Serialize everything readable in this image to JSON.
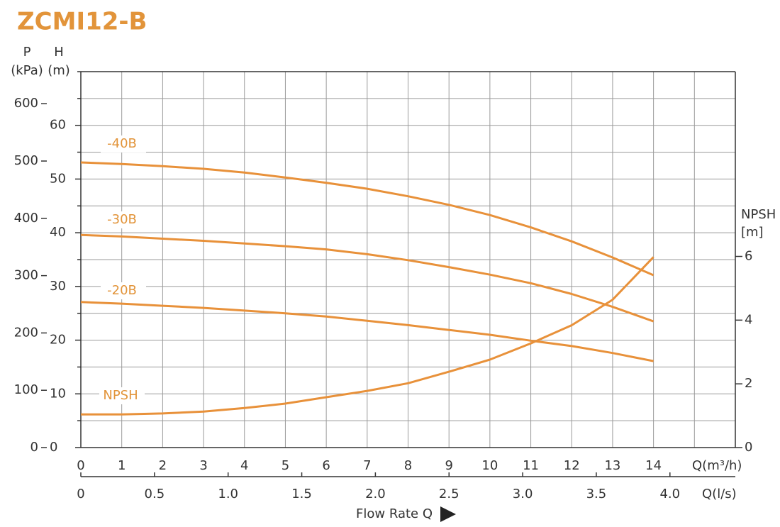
{
  "chart_data": {
    "type": "line",
    "title": "ZCMI12-B",
    "x_label": "Q(m³/h)",
    "x2_label": "Q(l/s)",
    "x_title": "Flow Rate Q",
    "y_label": "H",
    "y_unit": "(m)",
    "p_label": "P",
    "p_unit": "(kPa)",
    "y2_label": "NPSH",
    "y2_unit": "[m]",
    "x": [
      0,
      1,
      2,
      3,
      4,
      5,
      6,
      7,
      8,
      9,
      10,
      11,
      12,
      13,
      14
    ],
    "xlim": [
      0,
      16
    ],
    "xticks": [
      0,
      1,
      2,
      3,
      4,
      5,
      6,
      7,
      8,
      9,
      10,
      11,
      12,
      13,
      14
    ],
    "xgrid": [
      15,
      16
    ],
    "x2lim": [
      0,
      4.444
    ],
    "x2ticks": [
      0,
      0.5,
      {
        "value": 1,
        "label": "1.0"
      },
      1.5,
      {
        "value": 2,
        "label": "2.0"
      },
      2.5,
      {
        "value": 3,
        "label": "3.0"
      },
      3.5,
      {
        "value": 4,
        "label": "4.0"
      }
    ],
    "ylim": [
      0,
      70
    ],
    "yticks": [
      0,
      10,
      20,
      30,
      40,
      50,
      60
    ],
    "ygrid": [
      5,
      15,
      25,
      35,
      45,
      55,
      65,
      70
    ],
    "plim": [
      0,
      656
    ],
    "pticks": [
      0,
      100,
      200,
      300,
      400,
      500,
      600
    ],
    "y2lim": [
      0,
      11.8
    ],
    "y2ticks": [
      0,
      2,
      4,
      6
    ],
    "grid": true,
    "series": [
      {
        "name": "-40B",
        "color": "#e8913a",
        "axis": "y",
        "values": [
          53.1,
          52.8,
          52.4,
          51.9,
          51.2,
          50.3,
          49.3,
          48.2,
          46.8,
          45.2,
          43.3,
          41.0,
          38.4,
          35.4,
          32.1
        ]
      },
      {
        "name": "-30B",
        "color": "#e8913a",
        "axis": "y",
        "values": [
          39.6,
          39.3,
          38.9,
          38.5,
          38.0,
          37.5,
          36.9,
          36.0,
          34.9,
          33.6,
          32.2,
          30.6,
          28.6,
          26.2,
          23.5
        ]
      },
      {
        "name": "-20B",
        "color": "#e8913a",
        "axis": "y",
        "values": [
          27.1,
          26.8,
          26.4,
          26.0,
          25.5,
          25.0,
          24.4,
          23.6,
          22.8,
          21.9,
          21.0,
          19.9,
          18.9,
          17.6,
          16.1
        ]
      },
      {
        "name": "NPSH",
        "color": "#e8913a",
        "axis": "y2",
        "values": [
          1.04,
          1.04,
          1.07,
          1.13,
          1.24,
          1.38,
          1.58,
          1.78,
          2.02,
          2.38,
          2.76,
          3.27,
          3.84,
          4.64,
          5.98
        ]
      }
    ]
  }
}
